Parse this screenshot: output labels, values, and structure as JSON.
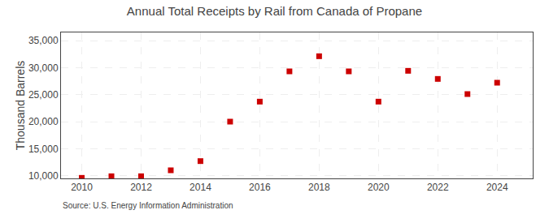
{
  "chart_data": {
    "type": "scatter",
    "title": "Annual Total Receipts by Rail from Canada of Propane",
    "ylabel": "Thousand Barrels",
    "annotations": [
      "Source: U.S. Energy Information Administration"
    ],
    "x": [
      2010,
      2011,
      2012,
      2013,
      2014,
      2015,
      2016,
      2017,
      2018,
      2019,
      2020,
      2021,
      2022,
      2023,
      2024
    ],
    "values": [
      9600,
      9900,
      9900,
      11000,
      12700,
      20000,
      23700,
      29300,
      32100,
      29300,
      23700,
      29400,
      27900,
      25100,
      27200
    ],
    "color": "#cc0000",
    "marker": "square",
    "xlim": [
      2009.3,
      2025.2
    ],
    "xticks": [
      2010,
      2012,
      2014,
      2016,
      2018,
      2020,
      2022,
      2024
    ],
    "ylim": [
      9500,
      36500
    ],
    "yticks": [
      {
        "value": 10000,
        "label": "10,000"
      },
      {
        "value": 15000,
        "label": "15,000"
      },
      {
        "value": 20000,
        "label": "20,000"
      },
      {
        "value": 25000,
        "label": "25,000"
      },
      {
        "value": 30000,
        "label": "30,000"
      },
      {
        "value": 35000,
        "label": "35,000"
      }
    ],
    "grid": true
  }
}
